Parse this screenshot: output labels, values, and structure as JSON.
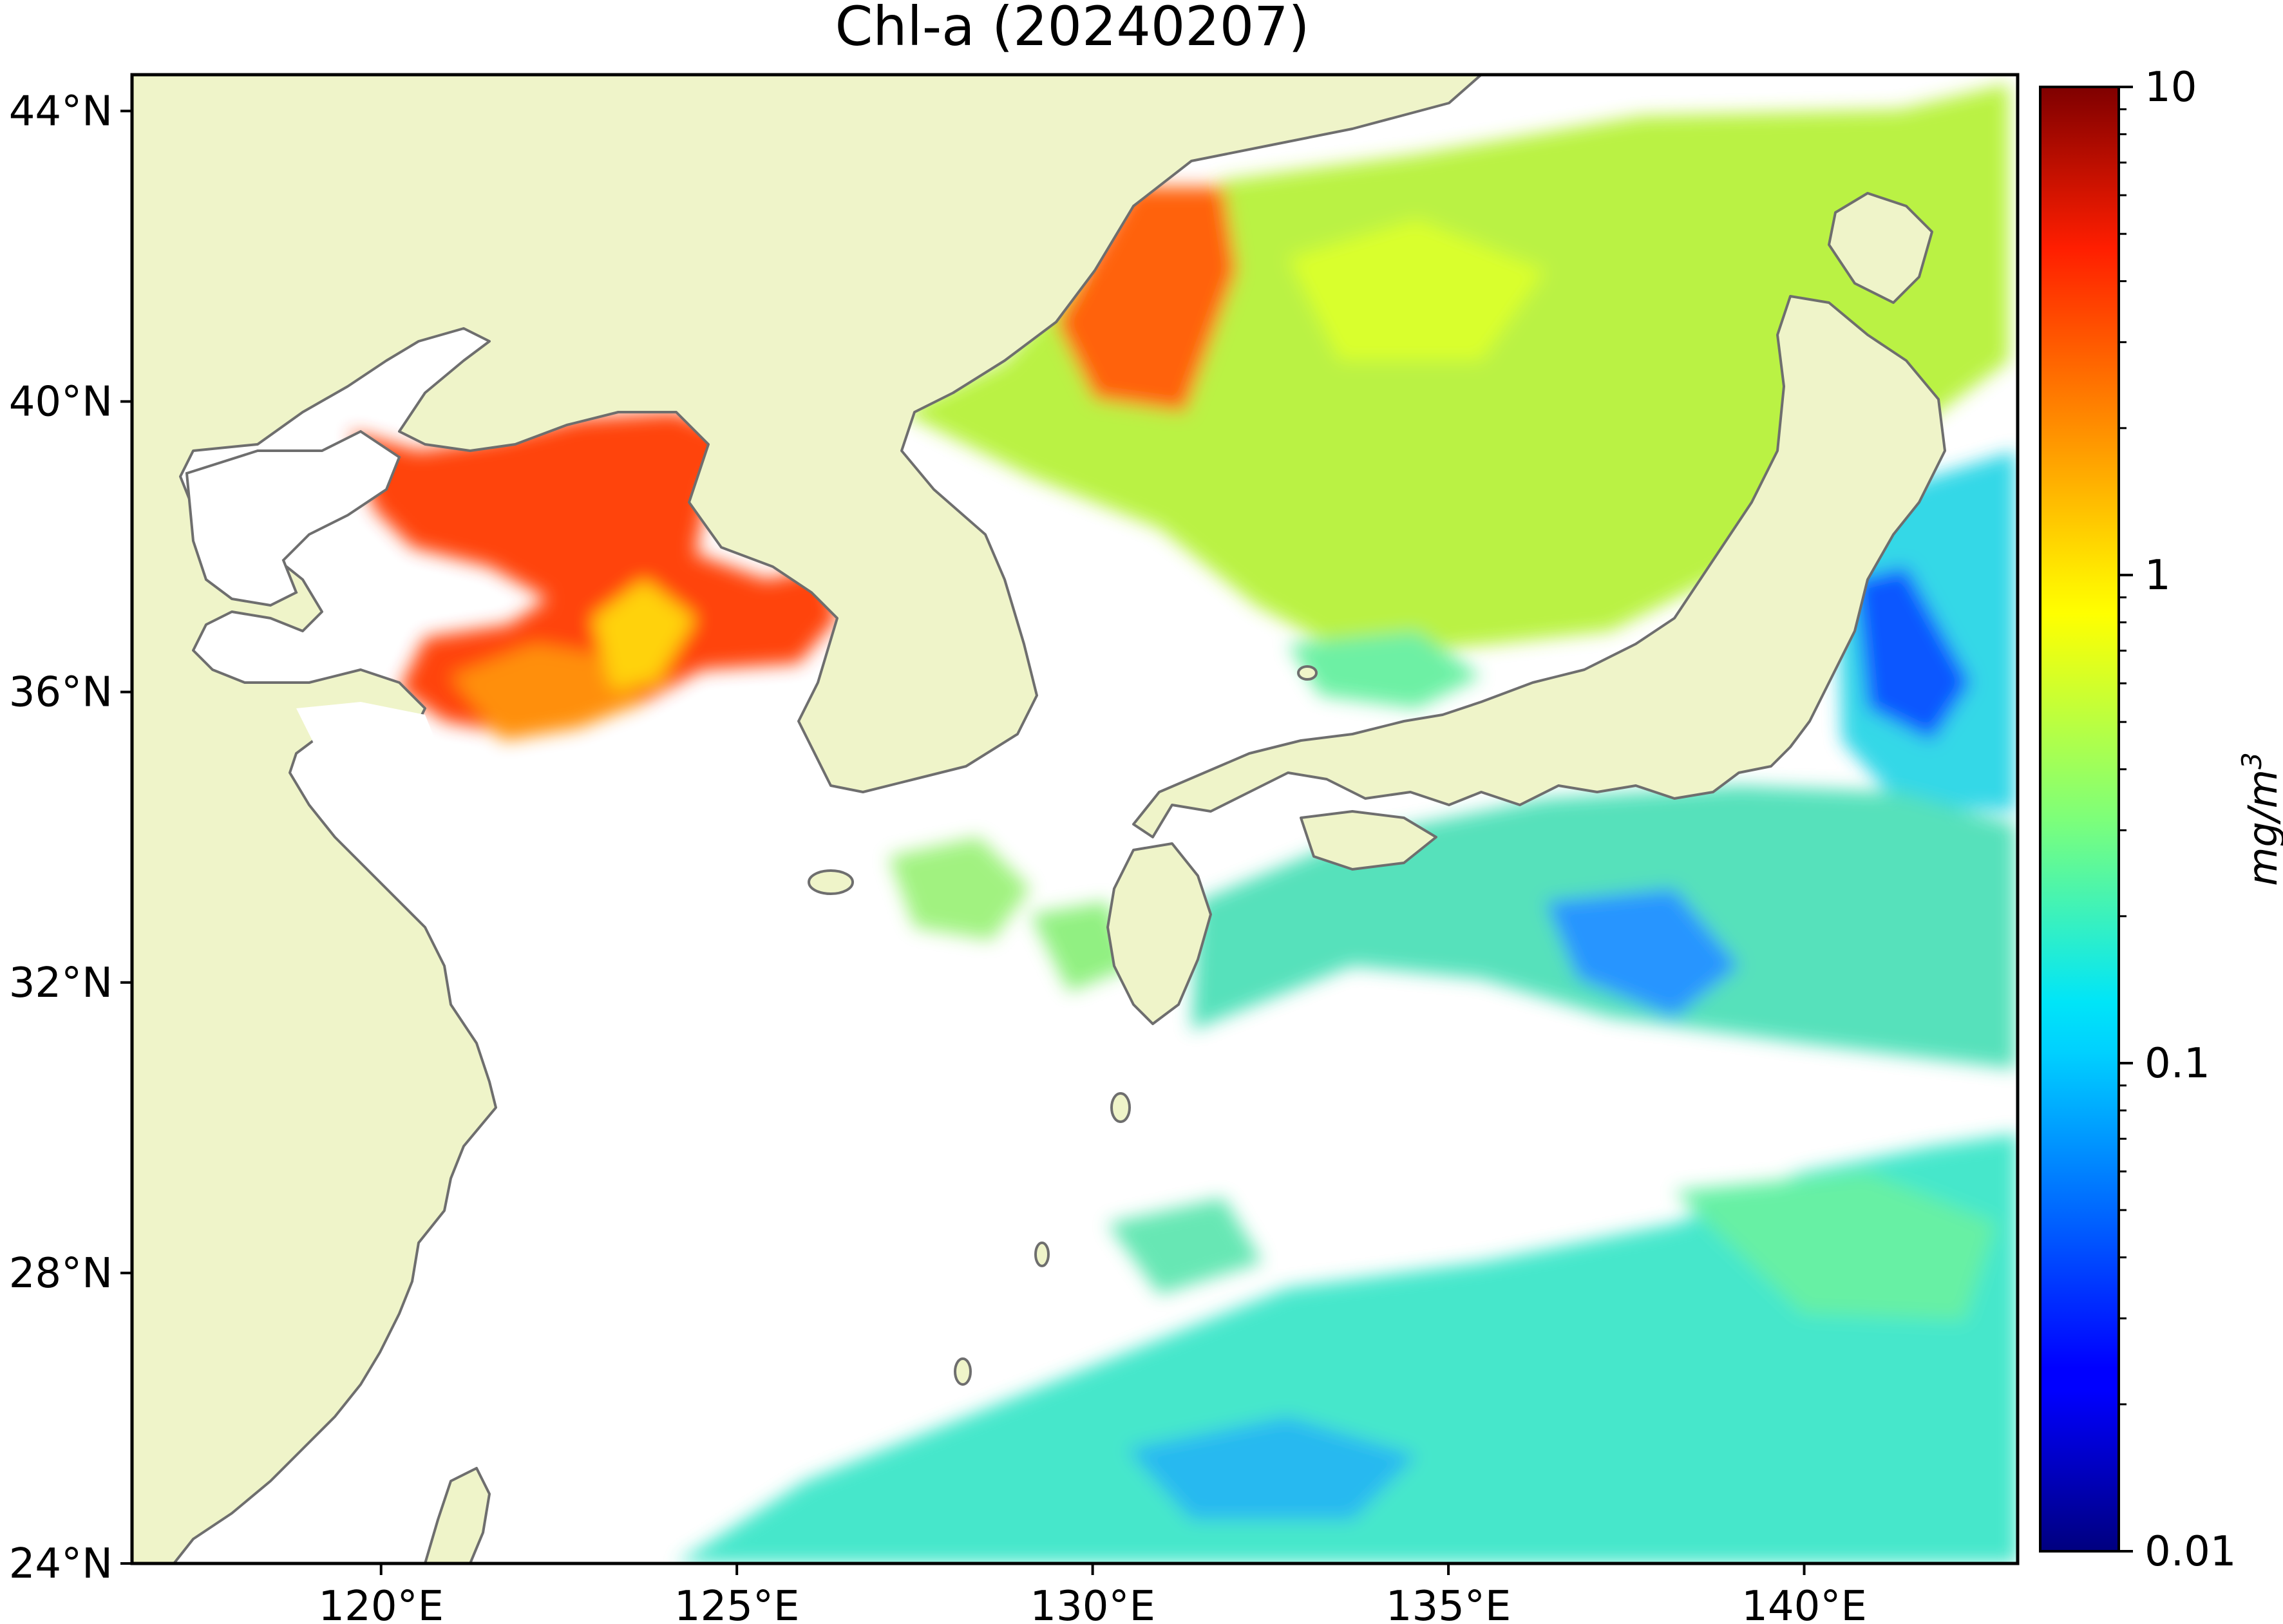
{
  "title": "Chl-a (20240207)",
  "map": {
    "lon_range": [
      116.5,
      143.0
    ],
    "lat_range": [
      24.0,
      44.5
    ],
    "lon_ticks": [
      120,
      125,
      130,
      135,
      140
    ],
    "lon_tick_labels": [
      "120°E",
      "125°E",
      "130°E",
      "135°E",
      "140°E"
    ],
    "lat_ticks": [
      24,
      28,
      32,
      36,
      40,
      44
    ],
    "lat_tick_labels": [
      "24°N",
      "28°N",
      "32°N",
      "36°N",
      "40°N",
      "44°N"
    ],
    "colors": {
      "land": "#eff4c9",
      "coast": "#6e6e6e",
      "no_data": "#ffffff",
      "frame": "#000000"
    }
  },
  "colorbar": {
    "scale": "log",
    "range": [
      0.01,
      10
    ],
    "tick_values": [
      0.01,
      0.1,
      1,
      10
    ],
    "tick_labels": [
      "0.01",
      "0.1",
      "1",
      "10"
    ],
    "unit": "mg/m",
    "unit_exponent": "3",
    "colormap": "jet"
  }
}
